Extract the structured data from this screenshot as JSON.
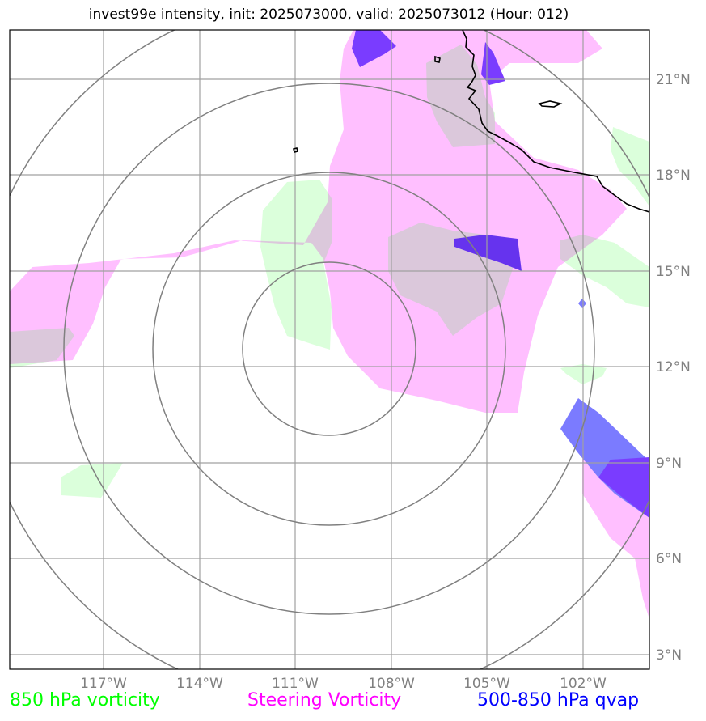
{
  "title": "invest99e intensity, init: 2025073000, valid: 2025073012 (Hour: 012)",
  "lat_labels": [
    "21°N",
    "18°N",
    "15°N",
    "12°N",
    "9°N",
    "6°N",
    "3°N"
  ],
  "lon_labels": [
    "117°W",
    "114°W",
    "111°W",
    "108°W",
    "105°W",
    "102°W"
  ],
  "legend": {
    "vort850": {
      "label": "850 hPa vorticity",
      "color": "#00ff00"
    },
    "steering": {
      "label": "Steering Vorticity",
      "color": "#ff00ff"
    },
    "qvap": {
      "label": "500-850 hPa qvap",
      "color": "#0000ff"
    }
  }
}
